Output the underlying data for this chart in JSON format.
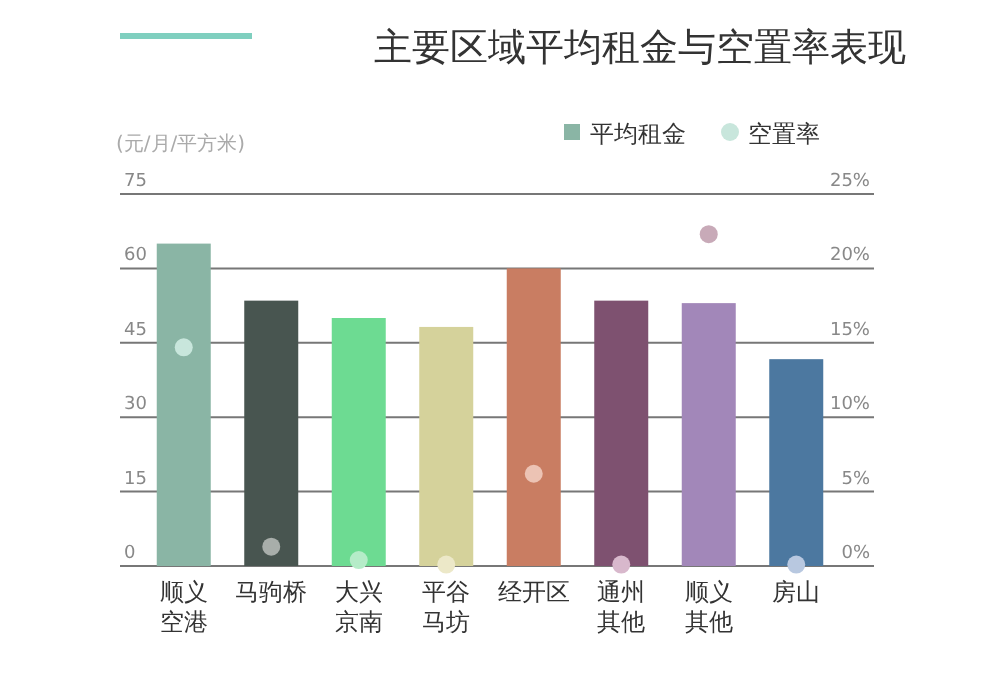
{
  "chart_data": {
    "type": "bar",
    "title": "主要区域平均租金与空置率表现",
    "ylabel": "(元/月/平方米)",
    "categories": [
      "顺义空港",
      "马驹桥",
      "大兴京南",
      "平谷马坊",
      "经开区",
      "通州其他",
      "顺义其他",
      "房山"
    ],
    "series": [
      {
        "name": "平均租金",
        "color": "#8ab5a5",
        "colors": [
          "#8ab5a5",
          "#485550",
          "#6ddb92",
          "#d5d29b",
          "#c97d62",
          "#7e5170",
          "#a287b9",
          "#4c78a0"
        ],
        "values": [
          65,
          53.5,
          50,
          48.2,
          60,
          53.5,
          53,
          41.7
        ]
      },
      {
        "name": "空置率",
        "type": "scatter",
        "axis": "y2",
        "color": "#c8e6dc",
        "colors": [
          "#c8e6dc",
          "#a8aeaa",
          "#b5ecc8",
          "#ece8c8",
          "#ecc3b4",
          "#d8b8cc",
          "#c8aab8",
          "#b8c8e0"
        ],
        "values": [
          14.7,
          1.3,
          0.4,
          0.1,
          6.2,
          0.1,
          22.3,
          0.1
        ]
      }
    ],
    "ylim": [
      0,
      75
    ],
    "yticks": [
      0,
      15,
      30,
      45,
      60,
      75
    ],
    "y2lim": [
      0,
      25
    ],
    "y2ticks": [
      {
        "value": 0,
        "label": "0%"
      },
      {
        "value": 5,
        "label": "5%"
      },
      {
        "value": 10,
        "label": "10%"
      },
      {
        "value": 15,
        "label": "15%"
      },
      {
        "value": 20,
        "label": "20%"
      },
      {
        "value": 25,
        "label": "25%"
      }
    ],
    "grid": "y",
    "legend": "top right",
    "marker": "circle"
  }
}
